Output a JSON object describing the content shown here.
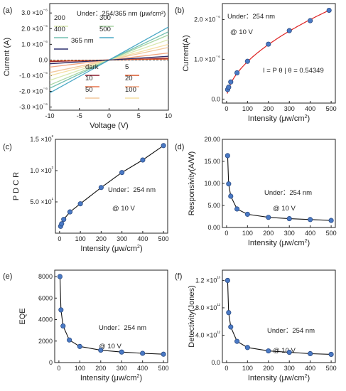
{
  "chart_data": [
    {
      "panel": "(a)",
      "type": "line",
      "xlabel": "Voltage (V)",
      "ylabel": "Current (A)",
      "xlim": [
        -10,
        10
      ],
      "ylim": [
        -3.2e-06,
        3.6e-06
      ],
      "xticks": [
        -10,
        -5,
        0,
        5,
        10
      ],
      "yticks": [
        -3e-06,
        -2e-06,
        -1e-06,
        0,
        1e-06,
        2e-06,
        3e-06
      ],
      "ytick_labels": [
        "-3.0 ×10⁻⁶",
        "-2.0 ×10⁻⁶",
        "-1.0 ×10⁻⁶",
        "0.0",
        "1.0 ×10⁻⁶",
        "2.0 ×10⁻⁶",
        "3.0 ×10⁻⁶"
      ],
      "legend_title": "Under：254/365 nm (μw/cm²)",
      "series": [
        {
          "name": "dark",
          "color": "#8b1a2b",
          "slope": 1e-08
        },
        {
          "name": "5",
          "color": "#d9572a",
          "slope": 6e-09
        },
        {
          "name": "10",
          "color": "#e8734a",
          "slope": 2.2e-08
        },
        {
          "name": "20",
          "color": "#f2a47e",
          "slope": 4.5e-08
        },
        {
          "name": "50",
          "color": "#f2c79c",
          "slope": 8e-08
        },
        {
          "name": "100",
          "color": "#f5dfa4",
          "slope": 1e-07
        },
        {
          "name": "200",
          "color": "#d9e8b0",
          "slope": 1.3e-07
        },
        {
          "name": "300",
          "color": "#a9d6a4",
          "slope": 1.6e-07
        },
        {
          "name": "400",
          "color": "#72bfb0",
          "slope": 1.8e-07
        },
        {
          "name": "500",
          "color": "#4aa8c6",
          "slope": 2.1e-07
        },
        {
          "name": "365 nm",
          "color": "#2b2e6e",
          "slope": 2.4e-08
        }
      ]
    },
    {
      "panel": "(b)",
      "type": "scatter",
      "xlabel": "Intensity (μw/cm²)",
      "ylabel": "Current(A)",
      "xlim": [
        -20,
        520
      ],
      "ylim": [
        -1e-07,
        2.4e-06
      ],
      "xticks": [
        0,
        100,
        200,
        300,
        400,
        500
      ],
      "yticks": [
        0,
        1e-06,
        2e-06
      ],
      "ytick_labels": [
        "0.0",
        "1.0 ×10⁻⁶",
        "2.0 ×10⁻⁶"
      ],
      "annotation": "Under：254 nm",
      "annotation2": "@ 10 V",
      "fit_label": "I = P θ | θ = 0.54349",
      "x": [
        5,
        10,
        20,
        50,
        100,
        200,
        300,
        400,
        490
      ],
      "y": [
        2.4e-07,
        3e-07,
        4.3e-07,
        6.6e-07,
        9.5e-07,
        1.38e-06,
        1.72e-06,
        1.97e-06,
        2.23e-06
      ]
    },
    {
      "panel": "(c)",
      "type": "line",
      "xlabel": "Intensity (μw/cm²)",
      "ylabel": "P D C R",
      "xlim": [
        -20,
        520
      ],
      "ylim": [
        0,
        150
      ],
      "xticks": [
        0,
        100,
        200,
        300,
        400,
        500
      ],
      "yticks": [
        50,
        100,
        150
      ],
      "ytick_labels": [
        "5.0 ×10¹",
        "1.0 ×10²",
        "1.5 ×10²"
      ],
      "annotation": "Under：254 nm",
      "annotation2": "@ 10 V",
      "x": [
        5,
        10,
        20,
        50,
        100,
        200,
        300,
        400,
        500
      ],
      "y": [
        11,
        15,
        22,
        34,
        47,
        73,
        97,
        117,
        140
      ]
    },
    {
      "panel": "(d)",
      "type": "line",
      "xlabel": "Intensity (μw/cm²)",
      "ylabel": "Responsivity(A/W)",
      "xlim": [
        -20,
        520
      ],
      "ylim": [
        0,
        20
      ],
      "xticks": [
        0,
        100,
        200,
        300,
        400,
        500
      ],
      "yticks": [
        0,
        5,
        10,
        15,
        20
      ],
      "ytick_labels": [
        "0.00",
        "5.00",
        "10.00",
        "15.00",
        "20.00"
      ],
      "annotation": "Under：254 nm",
      "annotation2": "@ 10 V",
      "x": [
        5,
        10,
        20,
        50,
        100,
        200,
        300,
        400,
        500
      ],
      "y": [
        16.3,
        9.9,
        7.1,
        4.2,
        3.0,
        2.3,
        2.0,
        1.8,
        1.6
      ]
    },
    {
      "panel": "(e)",
      "type": "line",
      "xlabel": "Intensity (μw/cm²)",
      "ylabel": "EQE",
      "xlim": [
        -20,
        520
      ],
      "ylim": [
        0,
        8600
      ],
      "xticks": [
        0,
        100,
        200,
        300,
        400,
        500
      ],
      "yticks": [
        0,
        2000,
        4000,
        6000,
        8000
      ],
      "ytick_labels": [
        "0",
        "2000",
        "4000",
        "6000",
        "8000"
      ],
      "annotation": "Under：254 nm",
      "annotation2": "@ 10 V",
      "x": [
        5,
        10,
        20,
        50,
        100,
        200,
        300,
        400,
        500
      ],
      "y": [
        8000,
        4900,
        3400,
        2100,
        1500,
        1150,
        980,
        860,
        780
      ]
    },
    {
      "panel": "(f)",
      "type": "line",
      "xlabel": "Intensity (μw/cm²)",
      "ylabel": "Detectivity(Jones)",
      "xlim": [
        -20,
        520
      ],
      "ylim": [
        0,
        13500000000000.0
      ],
      "xticks": [
        0,
        100,
        200,
        300,
        400,
        500
      ],
      "yticks": [
        0,
        4000000000000.0,
        8000000000000.0,
        12000000000000.0
      ],
      "ytick_labels": [
        "0.0",
        "4.0 ×10¹²",
        "8.0 ×10¹²",
        "1.2 ×10¹³"
      ],
      "annotation": "Under：254 nm",
      "annotation2": "@ 10 V",
      "x": [
        5,
        10,
        20,
        50,
        100,
        200,
        300,
        400,
        500
      ],
      "y": [
        12000000000000.0,
        7300000000000.0,
        5200000000000.0,
        3100000000000.0,
        2200000000000.0,
        1700000000000.0,
        1500000000000.0,
        1300000000000.0,
        1200000000000.0
      ]
    }
  ]
}
